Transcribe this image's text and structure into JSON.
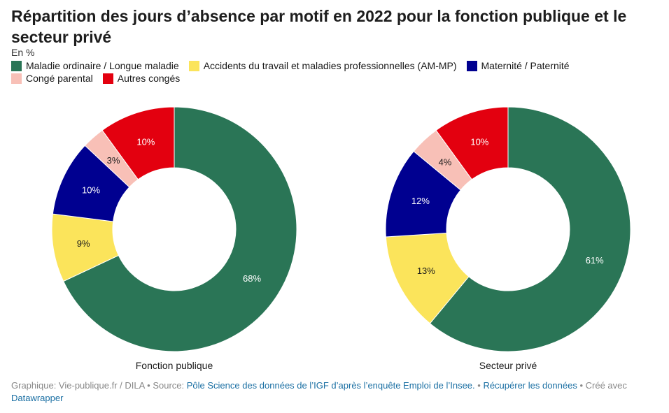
{
  "header": {
    "title": "Répartition des jours d’absence par motif en 2022 pour la fonction publique et le secteur privé",
    "subtitle": "En %"
  },
  "legend": [
    {
      "label": "Maladie ordinaire / Longue maladie",
      "color": "#2a7556"
    },
    {
      "label": "Accidents du travail et maladies professionnelles (AM-MP)",
      "color": "#fbe45b"
    },
    {
      "label": "Maternité / Paternité",
      "color": "#000090"
    },
    {
      "label": "Congé parental",
      "color": "#f8c0b7"
    },
    {
      "label": "Autres congés",
      "color": "#e3000f"
    }
  ],
  "chart_data": [
    {
      "type": "pie",
      "title": "Fonction publique",
      "categories": [
        "Maladie ordinaire / Longue maladie",
        "Accidents du travail et maladies professionnelles (AM-MP)",
        "Maternité / Paternité",
        "Congé parental",
        "Autres congés"
      ],
      "values": [
        68,
        9,
        10,
        3,
        10
      ],
      "labels": [
        "68%",
        "9%",
        "10%",
        "3%",
        "10%"
      ]
    },
    {
      "type": "pie",
      "title": "Secteur privé",
      "categories": [
        "Maladie ordinaire / Longue maladie",
        "Accidents du travail et maladies professionnelles (AM-MP)",
        "Maternité / Paternité",
        "Congé parental",
        "Autres congés"
      ],
      "values": [
        61,
        13,
        12,
        4,
        10
      ],
      "labels": [
        "61%",
        "13%",
        "12%",
        "4%",
        "10%"
      ]
    }
  ],
  "footer": {
    "graphic_prefix": "Graphique: Vie-publique.fr / DILA • Source: ",
    "source_link": "Pôle Science des données de l’IGF d’après l’enquête Emploi de l’Insee.",
    "separator": " • ",
    "data_link": "Récupérer les données",
    "created_with": " • Créé avec ",
    "datawrapper_link": "Datawrapper"
  }
}
